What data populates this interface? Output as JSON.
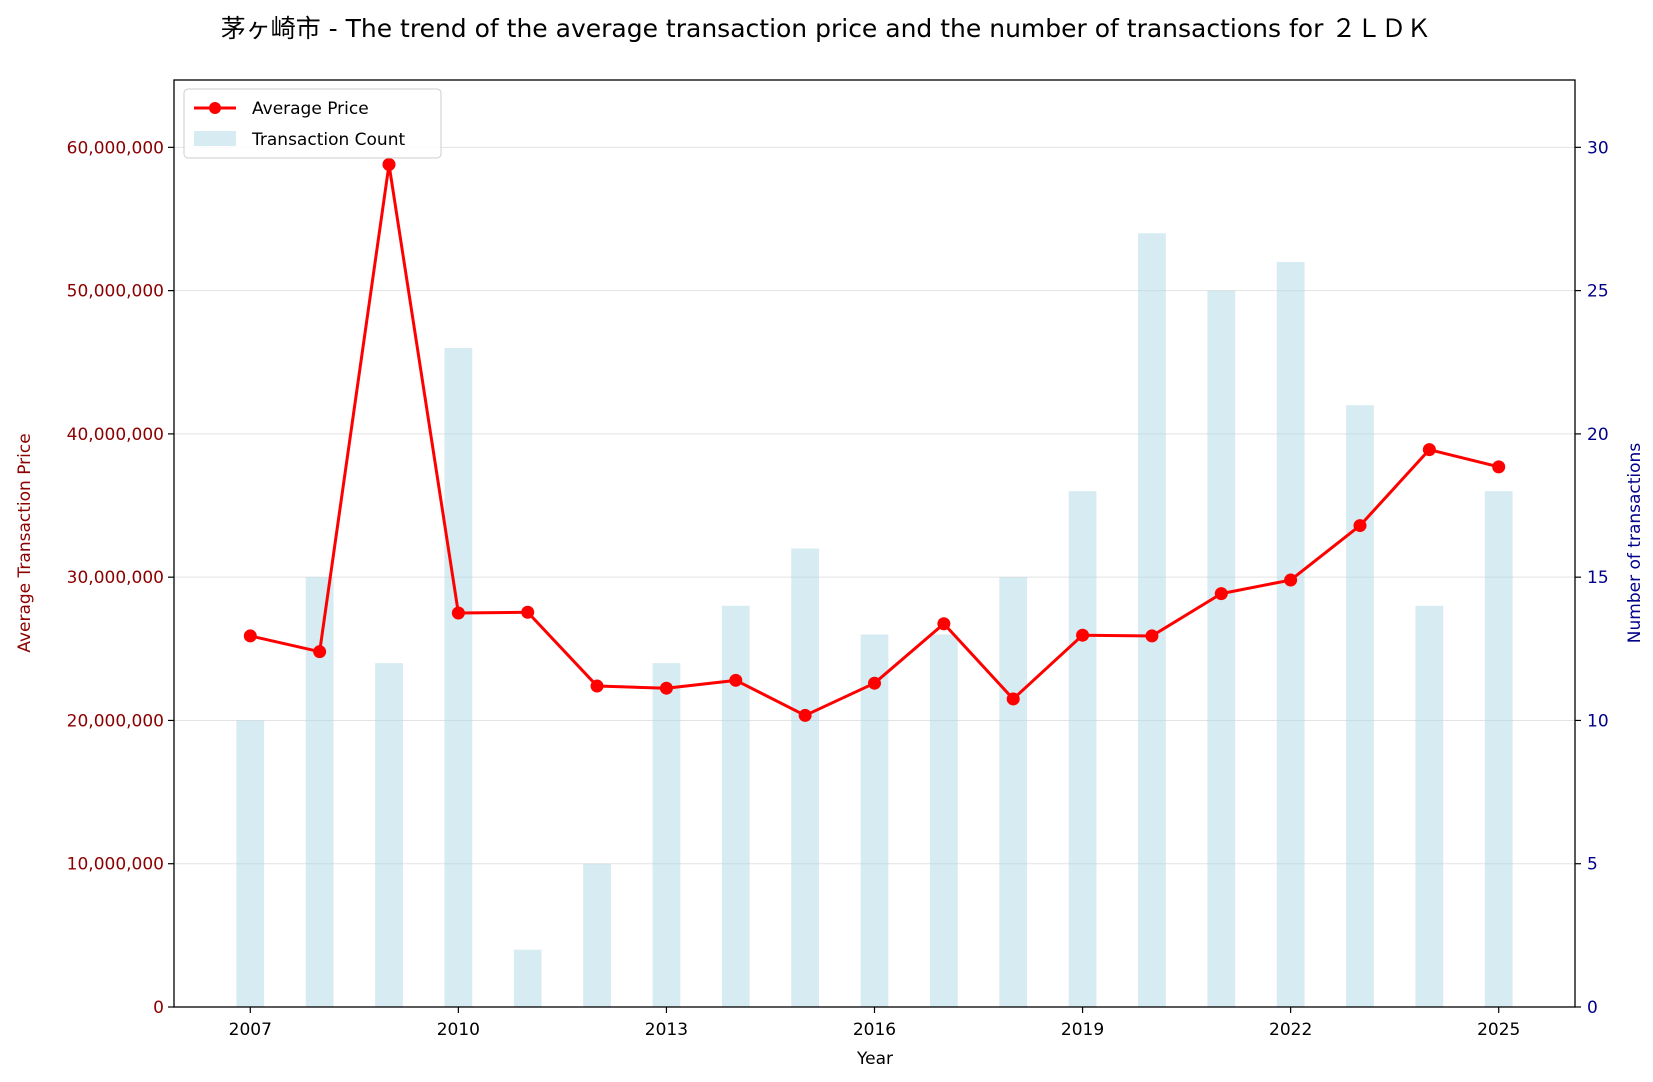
{
  "chart_data": {
    "type": "bar+line",
    "title": "茅ヶ崎市 - The trend of the average transaction price and the number of transactions for ２ＬＤＫ",
    "xlabel": "Year",
    "ylabel_left": "Average Transaction Price",
    "ylabel_right": "Number of transactions",
    "years": [
      2007,
      2008,
      2009,
      2010,
      2011,
      2012,
      2013,
      2014,
      2015,
      2016,
      2017,
      2018,
      2019,
      2020,
      2021,
      2022,
      2023,
      2024,
      2025
    ],
    "x_ticks": [
      "2007",
      "2010",
      "2013",
      "2016",
      "2019",
      "2022",
      "2025"
    ],
    "xlim": [
      2005.9,
      2026.1
    ],
    "series": [
      {
        "name": "Average Price",
        "axis": "left",
        "kind": "line",
        "color": "#ff0000",
        "values": [
          25900000,
          24800000,
          58800000,
          27500000,
          27550000,
          22400000,
          22250000,
          22800000,
          20350000,
          22600000,
          26750000,
          21500000,
          25950000,
          25900000,
          28850000,
          29800000,
          33600000,
          38900000,
          37700000
        ]
      },
      {
        "name": "Transaction Count",
        "axis": "right",
        "kind": "bar",
        "color": "#add8e6",
        "values": [
          10,
          15,
          12,
          23,
          2,
          5,
          12,
          14,
          16,
          13,
          13,
          15,
          18,
          27,
          25,
          26,
          21,
          14,
          18
        ]
      }
    ],
    "left_axis": {
      "ylim": [
        0,
        64700000
      ],
      "ticks": [
        0,
        10000000,
        20000000,
        30000000,
        40000000,
        50000000,
        60000000
      ],
      "tick_labels": [
        "0",
        "10,000,000",
        "20,000,000",
        "30,000,000",
        "40,000,000",
        "50,000,000",
        "60,000,000"
      ],
      "color": "#8b0000"
    },
    "right_axis": {
      "ylim": [
        0,
        32.35
      ],
      "ticks": [
        0,
        5,
        10,
        15,
        20,
        25,
        30
      ],
      "tick_labels": [
        "0",
        "5",
        "10",
        "15",
        "20",
        "25",
        "30"
      ],
      "color": "#00008b"
    },
    "grid": "horizontal",
    "legend_position": "upper-left"
  }
}
